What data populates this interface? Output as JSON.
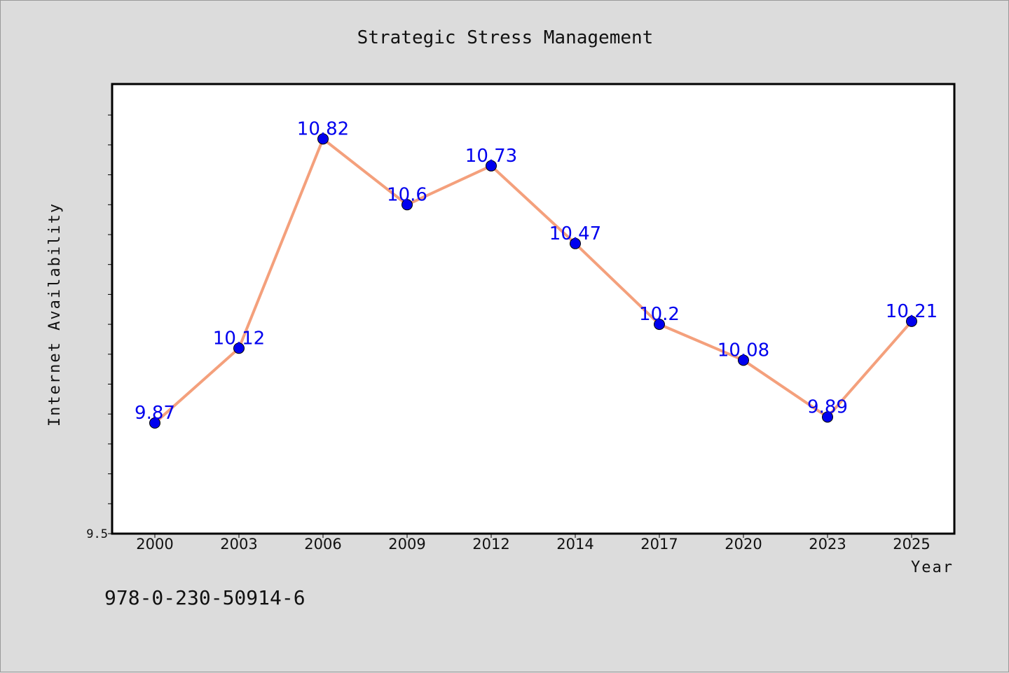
{
  "caption": "978-0-230-50914-6",
  "colors": {
    "background": "#dcdcdc",
    "plot_background": "#ffffff",
    "line": "#f4a07c",
    "marker": "#0000ee",
    "data_label": "#0000ee"
  },
  "chart_data": {
    "type": "line",
    "title": "Strategic Stress Management",
    "xlabel": "Year",
    "ylabel": "Internet Availability",
    "categories": [
      "2000",
      "2003",
      "2006",
      "2009",
      "2012",
      "2014",
      "2017",
      "2020",
      "2023",
      "2025"
    ],
    "series": [
      {
        "values": [
          9.87,
          10.12,
          10.82,
          10.6,
          10.73,
          10.47,
          10.2,
          10.08,
          9.89,
          10.21
        ]
      }
    ],
    "data_labels": [
      "9.87",
      "10.12",
      "10.82",
      "10.6",
      "10.73",
      "10.47",
      "10.2",
      "10.08",
      "9.89",
      "10.21"
    ],
    "ytick_labels": [
      "9.5"
    ],
    "ylim": [
      9.5,
      11.0
    ],
    "ytick_step": 0.1,
    "grid": false,
    "legend": "none",
    "marker": "circle"
  }
}
